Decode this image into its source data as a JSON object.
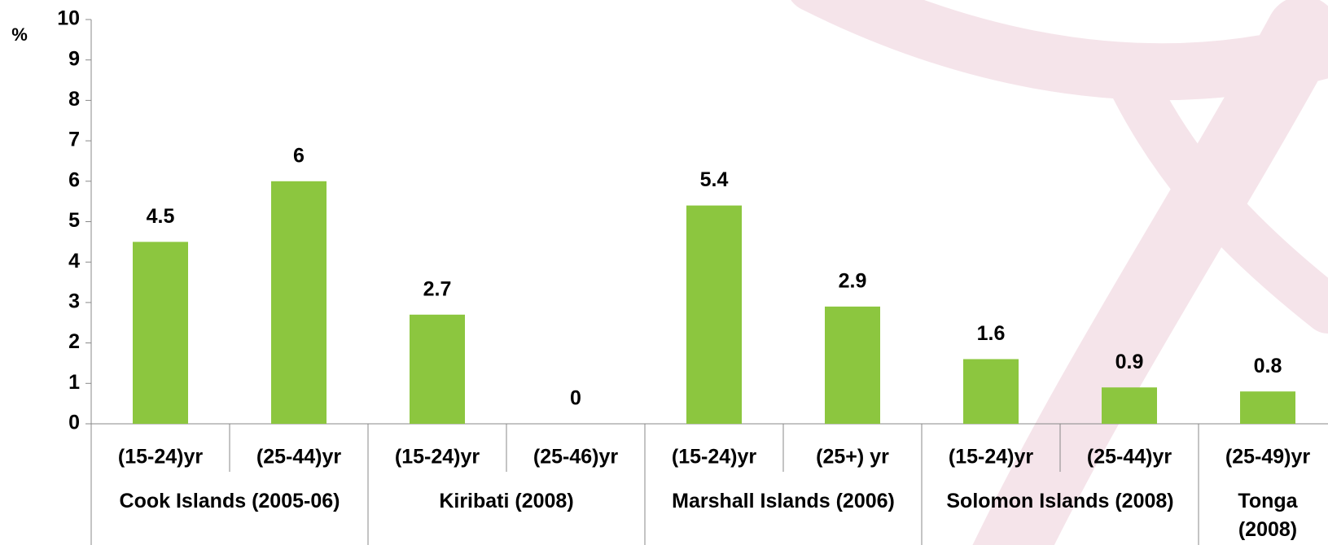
{
  "chart_data": {
    "type": "bar",
    "y_label": "%",
    "categories": [
      "(15-24)yr",
      "(25-44)yr",
      "(15-24)yr",
      "(25-46)yr",
      "(15-24)yr",
      "(25+) yr",
      "(15-24)yr",
      "(25-44)yr",
      "(25-49)yr"
    ],
    "groups": [
      "Cook Islands (2005-06)",
      "Cook Islands (2005-06)",
      "Kiribati (2008)",
      "Kiribati (2008)",
      "Marshall Islands (2006)",
      "Marshall Islands (2006)",
      "Solomon Islands (2008)",
      "Solomon Islands (2008)",
      "Tonga (2008)"
    ],
    "values": [
      4.5,
      6,
      2.7,
      0,
      5.4,
      2.9,
      1.6,
      0.9,
      0.8
    ],
    "color": "#8cc63f",
    "ylim": [
      0,
      10
    ],
    "yticks": [
      0,
      1,
      2,
      3,
      4,
      5,
      6,
      7,
      8,
      9,
      10
    ],
    "grid": false
  }
}
